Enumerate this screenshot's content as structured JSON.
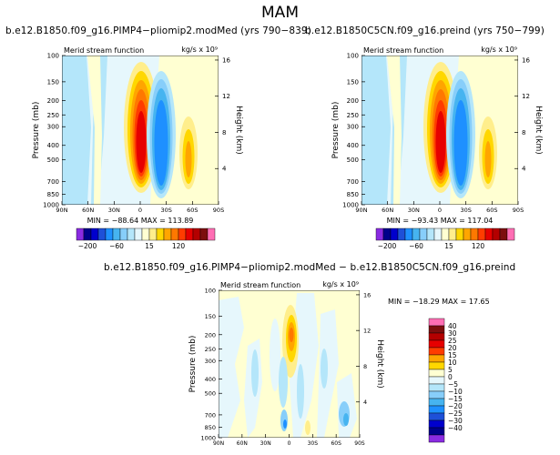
{
  "page": {
    "title": "MAM",
    "diff_title": "b.e12.B1850.f09_g16.PIMP4−pliomip2.modMed − b.e12.B1850C5CN.f09_g16.preind"
  },
  "chart_data": [
    {
      "type": "heatmap",
      "title": "b.e12.B1850.f09_g16.PIMP4−pliomip2.modMed (yrs 790−839)",
      "subtitle": "Merid stream function",
      "units": "kg/s x 10⁹",
      "xlabel": "",
      "ylabel": "Pressure (mb)",
      "ylabel_right": "Height (km)",
      "x_ticks": [
        "90N",
        "60N",
        "30N",
        "0",
        "30S",
        "60S",
        "90S"
      ],
      "y_ticks": [
        "100",
        "150",
        "200",
        "250",
        "300",
        "400",
        "500",
        "700",
        "850",
        "1000"
      ],
      "y_ticks_right": [
        "16",
        "12",
        "8",
        "4"
      ],
      "stats_text": "MIN = −88.64   MAX = 113.89",
      "min": -88.64,
      "max": 113.89,
      "colorbar_labels": [
        "−200",
        "−60",
        "15",
        "120"
      ],
      "cells": [
        {
          "lat": -90,
          "p": 100,
          "v": 0
        },
        {
          "lat": 10,
          "p": 400,
          "v": 113.89
        },
        {
          "lat": -10,
          "p": 400,
          "v": -88.64
        },
        {
          "lat": -45,
          "p": 500,
          "v": 40
        },
        {
          "lat": 45,
          "p": 500,
          "v": -10
        }
      ]
    },
    {
      "type": "heatmap",
      "title": "b.e12.B1850C5CN.f09_g16.preind (yrs 750−799)",
      "subtitle": "Merid stream function",
      "units": "kg/s x 10⁹",
      "xlabel": "",
      "ylabel": "Pressure (mb)",
      "ylabel_right": "Height (km)",
      "x_ticks": [
        "90N",
        "60N",
        "30N",
        "0",
        "30S",
        "60S",
        "90S"
      ],
      "y_ticks": [
        "100",
        "150",
        "200",
        "250",
        "300",
        "400",
        "500",
        "700",
        "850",
        "1000"
      ],
      "y_ticks_right": [
        "16",
        "12",
        "8",
        "4"
      ],
      "stats_text": "MIN = −93.43   MAX = 117.04",
      "min": -93.43,
      "max": 117.04,
      "colorbar_labels": [
        "−200",
        "−60",
        "15",
        "120"
      ]
    },
    {
      "type": "heatmap",
      "title": "",
      "subtitle": "Merid stream function",
      "units": "kg/s x 10⁹",
      "xlabel": "",
      "ylabel": "Pressure (mb)",
      "ylabel_right": "Height (km)",
      "x_ticks": [
        "90N",
        "60N",
        "30N",
        "0",
        "30S",
        "60S",
        "90S"
      ],
      "y_ticks": [
        "100",
        "150",
        "200",
        "250",
        "300",
        "400",
        "500",
        "700",
        "850",
        "1000"
      ],
      "y_ticks_right": [
        "16",
        "12",
        "8",
        "4"
      ],
      "stats_text": "MIN = −18.29   MAX =  17.65",
      "min": -18.29,
      "max": 17.65,
      "colorbar_labels": [
        "40",
        "30",
        "25",
        "20",
        "15",
        "10",
        "5",
        "0",
        "−5",
        "−10",
        "−15",
        "−20",
        "−25",
        "−30",
        "−40"
      ]
    }
  ],
  "colors": {
    "full_palette": [
      "#8a2be2",
      "#00008b",
      "#0000cd",
      "#1e50d8",
      "#1e90ff",
      "#46b4f0",
      "#87cefa",
      "#b4e6fa",
      "#e6f7fc",
      "#ffffd2",
      "#ffee8c",
      "#ffd700",
      "#ffa500",
      "#ff7800",
      "#ff3c00",
      "#e60000",
      "#b40000",
      "#7c0e0e",
      "#ff6eb4"
    ],
    "diff_palette": [
      "#ff6eb4",
      "#7c0e0e",
      "#b40000",
      "#e60000",
      "#ff3c00",
      "#ffa500",
      "#ffd700",
      "#ffffd2",
      "#e6f7fc",
      "#b4e6fa",
      "#87cefa",
      "#46b4f0",
      "#1e90ff",
      "#1e50d8",
      "#0000cd",
      "#00008b",
      "#8a2be2"
    ]
  }
}
